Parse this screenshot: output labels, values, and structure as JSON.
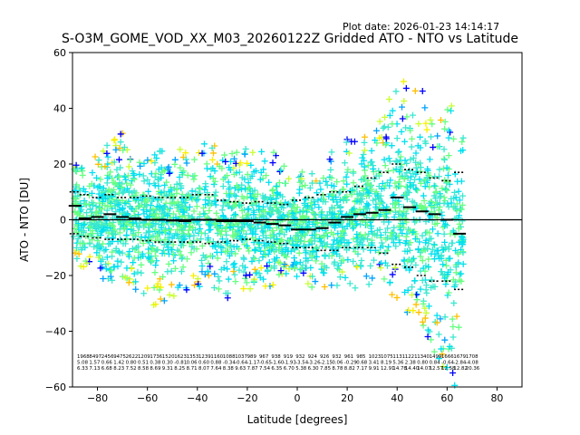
{
  "header": {
    "plot_date": "Plot date: 2026-01-23 14:14:17",
    "title": "S-O3M_GOME_VOD_XX_M03_20260122Z Gridded ATO - NTO vs Latitude"
  },
  "chart_data": {
    "type": "scatter",
    "title": "S-O3M_GOME_VOD_XX_M03_20260122Z Gridded ATO - NTO vs Latitude",
    "xlabel": "Latitude [degrees]",
    "ylabel": "ATO - NTO [DU]",
    "xlim": [
      -90,
      90
    ],
    "ylim": [
      -60,
      60
    ],
    "xticks": [
      -80,
      -60,
      -40,
      -20,
      0,
      20,
      40,
      60,
      80
    ],
    "yticks": [
      -60,
      -40,
      -20,
      0,
      20,
      40,
      60
    ],
    "xtick_labels": [
      "−80",
      "−60",
      "−40",
      "−20",
      "0",
      "20",
      "40",
      "60",
      "80"
    ],
    "ytick_labels": [
      "−60",
      "−40",
      "−20",
      "0",
      "20",
      "40",
      "60"
    ],
    "zero_line": 0,
    "marker": "+",
    "colors": [
      "#0000ff",
      "#00a2ff",
      "#00e0f0",
      "#3ce8d0",
      "#66ff80",
      "#c8ff30",
      "#f8f000",
      "#ffc000"
    ],
    "scatter_envelope": {
      "lat": [
        -90,
        -85,
        -80,
        -75,
        -70,
        -65,
        -60,
        -55,
        -50,
        -45,
        -40,
        -35,
        -30,
        -25,
        -20,
        -15,
        -10,
        -5,
        0,
        5,
        10,
        15,
        20,
        25,
        30,
        35,
        40,
        45,
        50,
        55,
        60,
        63,
        66
      ],
      "upper": [
        22,
        24,
        24,
        28,
        32,
        26,
        24,
        28,
        25,
        26,
        28,
        32,
        27,
        25,
        26,
        25,
        25,
        20,
        18,
        17,
        22,
        28,
        30,
        30,
        36,
        38,
        55,
        45,
        48,
        35,
        45,
        48,
        35
      ],
      "lower": [
        -15,
        -18,
        -20,
        -25,
        -24,
        -25,
        -32,
        -30,
        -28,
        -28,
        -25,
        -24,
        -30,
        -28,
        -25,
        -25,
        -24,
        -20,
        -22,
        -24,
        -25,
        -26,
        -27,
        -25,
        -25,
        -24,
        -30,
        -38,
        -45,
        -50,
        -58,
        -60,
        -25
      ]
    },
    "series": [
      {
        "name": "mean",
        "lat": [
          -89,
          -85,
          -80,
          -75,
          -70,
          -65,
          -60,
          -55,
          -50,
          -45,
          -40,
          -35,
          -30,
          -25,
          -20,
          -15,
          -10,
          -5,
          0,
          5,
          10,
          15,
          20,
          25,
          30,
          35,
          40,
          45,
          50,
          55,
          60,
          65
        ],
        "values": [
          5,
          0.5,
          1,
          2,
          1,
          0.5,
          0,
          0,
          -0.3,
          -0.5,
          0,
          0,
          -0.5,
          -0.5,
          -0.5,
          -1,
          -1.5,
          -2,
          -3.5,
          -3.5,
          -3,
          -1,
          1,
          2,
          2.5,
          3.5,
          8,
          4.5,
          3,
          2,
          0,
          -5
        ]
      },
      {
        "name": "+1 std",
        "lat": [
          -89,
          -85,
          -80,
          -75,
          -70,
          -65,
          -60,
          -55,
          -50,
          -45,
          -40,
          -35,
          -30,
          -25,
          -20,
          -15,
          -10,
          -5,
          0,
          5,
          10,
          15,
          20,
          25,
          30,
          35,
          40,
          45,
          50,
          55,
          60,
          65
        ],
        "values": [
          10,
          9,
          8,
          9,
          8,
          8,
          8.5,
          8,
          8,
          8,
          9,
          9,
          7,
          6.5,
          6,
          6.5,
          6,
          5.5,
          7,
          8,
          9,
          10,
          10,
          12,
          15,
          17,
          20,
          18,
          17,
          15,
          14,
          17
        ]
      },
      {
        "name": "-1 std",
        "lat": [
          -89,
          -85,
          -80,
          -75,
          -70,
          -65,
          -60,
          -55,
          -50,
          -45,
          -40,
          -35,
          -30,
          -25,
          -20,
          -15,
          -10,
          -5,
          0,
          5,
          10,
          15,
          20,
          25,
          30,
          35,
          40,
          45,
          50,
          55,
          60,
          65
        ],
        "values": [
          -5,
          -6,
          -6.5,
          -7,
          -7,
          -7,
          -7.5,
          -8,
          -8,
          -8,
          -8,
          -8.5,
          -8,
          -7.5,
          -7,
          -7.5,
          -8,
          -8.5,
          -10,
          -10,
          -11,
          -11,
          -10,
          -10,
          -10,
          -12,
          -16,
          -17,
          -20,
          -22,
          -22,
          -25
        ]
      }
    ],
    "stats_rows": [
      [
        "1968",
        "8497",
        "2456",
        "9475",
        "2622",
        "1209",
        "1736",
        "1520",
        "1623",
        "1353",
        "1239",
        "1160",
        "1088",
        "1037",
        "989",
        "967",
        "938",
        "919",
        "932",
        "924",
        "926",
        "932",
        "961",
        "985",
        "1023",
        "1075",
        "1131",
        "1221",
        "1340",
        "1499",
        "1666",
        "1679",
        "1708"
      ],
      [
        "5.08",
        "1.57",
        "0.66",
        "1.42",
        "0.80",
        "0.51",
        "0.38",
        "0.30",
        "-0.81",
        "0.06",
        "0.60",
        "0.88",
        "-0.34",
        "-0.64",
        "-1.17",
        "-0.65",
        "-1.60",
        "-1.93",
        "-3.54",
        "-3.26",
        "-2.15",
        "0.06",
        "-0.29",
        "0.68",
        "3.41",
        "8.19",
        "5.36",
        "2.38",
        "0.80",
        "0.84",
        "-0.64",
        "-2.84",
        "-4.08"
      ],
      [
        "6.33",
        "7.13",
        "6.68",
        "8.23",
        "7.52",
        "8.58",
        "8.69",
        "9.31",
        "8.25",
        "8.71",
        "8.07",
        "7.64",
        "8.38",
        "9.63",
        "7.87",
        "7.54",
        "6.35",
        "6.70",
        "5.38",
        "6.30",
        "7.85",
        "8.78",
        "8.82",
        "7.17",
        "9.91",
        "12.91",
        "14.78",
        "14.40",
        "14.07",
        "12.57",
        "12.58",
        "12.82",
        "20.36"
      ]
    ],
    "legend": "none",
    "grid": false
  }
}
